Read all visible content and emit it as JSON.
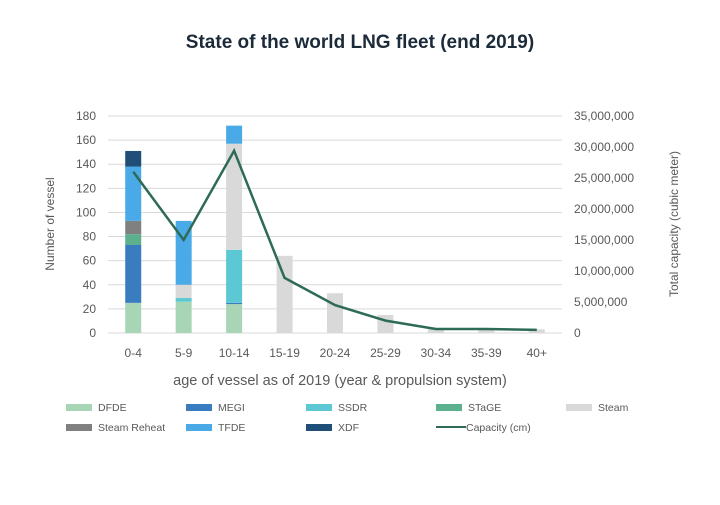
{
  "chart_data": {
    "type": "bar",
    "title": "State of the world LNG fleet (end 2019)",
    "xlabel": "age of vessel as of 2019 (year & propulsion system)",
    "ylabel": "Number of vessel",
    "y2label": "Total capacity (cubic meter)",
    "ylim": [
      0,
      180
    ],
    "y2lim": [
      0,
      35000000
    ],
    "yticks": [
      "0",
      "20",
      "40",
      "60",
      "80",
      "100",
      "120",
      "140",
      "160",
      "180"
    ],
    "y2ticks": [
      "0",
      "5,000,000",
      "10,000,000",
      "15,000,000",
      "20,000,000",
      "25,000,000",
      "30,000,000",
      "35,000,000"
    ],
    "grid": true,
    "stacked": true,
    "legend_position": "bottom",
    "categories": [
      "0-4",
      "5-9",
      "10-14",
      "15-19",
      "20-24",
      "25-29",
      "30-34",
      "35-39",
      "40+"
    ],
    "series": [
      {
        "name": "DFDE",
        "color": "#a8d5b5",
        "values": [
          25,
          26,
          24,
          0,
          0,
          0,
          0,
          0,
          0
        ]
      },
      {
        "name": "MEGI",
        "color": "#3a7cc0",
        "values": [
          48,
          0,
          1,
          0,
          0,
          0,
          0,
          0,
          0
        ]
      },
      {
        "name": "SSDR",
        "color": "#5bc8d3",
        "values": [
          0,
          3,
          44,
          0,
          0,
          0,
          0,
          0,
          0
        ]
      },
      {
        "name": "STaGE",
        "color": "#5cb08e",
        "values": [
          9,
          0,
          0,
          0,
          0,
          0,
          0,
          0,
          0
        ]
      },
      {
        "name": "Steam",
        "color": "#d9d9d9",
        "values": [
          0,
          11,
          88,
          64,
          33,
          15,
          3,
          4,
          3
        ]
      },
      {
        "name": "Steam Reheat",
        "color": "#808080",
        "values": [
          11,
          0,
          0,
          0,
          0,
          0,
          0,
          0,
          0
        ]
      },
      {
        "name": "TFDE",
        "color": "#4aaae8",
        "values": [
          45,
          53,
          15,
          0,
          0,
          0,
          0,
          0,
          0
        ]
      },
      {
        "name": "XDF",
        "color": "#1f4e79",
        "values": [
          13,
          0,
          0,
          0,
          0,
          0,
          0,
          0,
          0
        ]
      }
    ],
    "line_series": {
      "name": "Capacity (cm)",
      "color": "#2e6b55",
      "axis": "right",
      "values": [
        26000000,
        15000000,
        29400000,
        8900000,
        4500000,
        2000000,
        650000,
        650000,
        500000
      ]
    }
  }
}
